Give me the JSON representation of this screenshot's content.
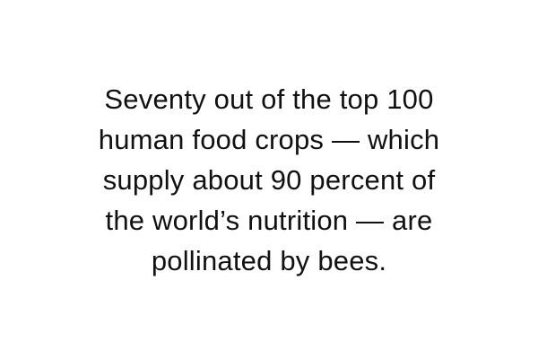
{
  "quote": {
    "lines": [
      "Seventy out of the top 100",
      "human food crops — which",
      "supply about 90 percent of",
      "the world’s nutrition — are",
      "pollinated by bees."
    ]
  },
  "colors": {
    "background": "#ffffff",
    "text": "#111111"
  }
}
